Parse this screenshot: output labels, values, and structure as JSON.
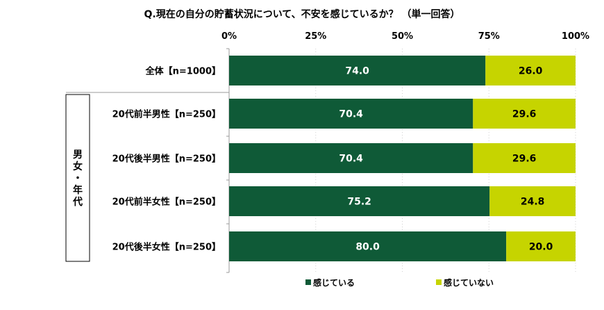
{
  "chart_data": {
    "type": "bar",
    "orientation": "horizontal",
    "stacked": true,
    "title": "Q.現在の自分の貯蓄状況について、不安を感じているか？ （単一回答）",
    "categories": [
      "全体【n=1000】",
      "20代前半男性【n=250】",
      "20代後半男性【n=250】",
      "20代前半女性【n=250】",
      "20代後半女性【n=250】"
    ],
    "group_label": "男女・年代",
    "series": [
      {
        "name": "感じている",
        "values": [
          74.0,
          70.4,
          70.4,
          75.2,
          80.0
        ],
        "color": "#0f5a37"
      },
      {
        "name": "感じていない",
        "values": [
          26.0,
          29.6,
          29.6,
          24.8,
          20.0
        ],
        "color": "#c6d400"
      }
    ],
    "xlim": [
      0,
      100
    ],
    "xticks": [
      "0%",
      "25%",
      "50%",
      "75%",
      "100%"
    ],
    "grid": true,
    "legend_position": "bottom"
  }
}
